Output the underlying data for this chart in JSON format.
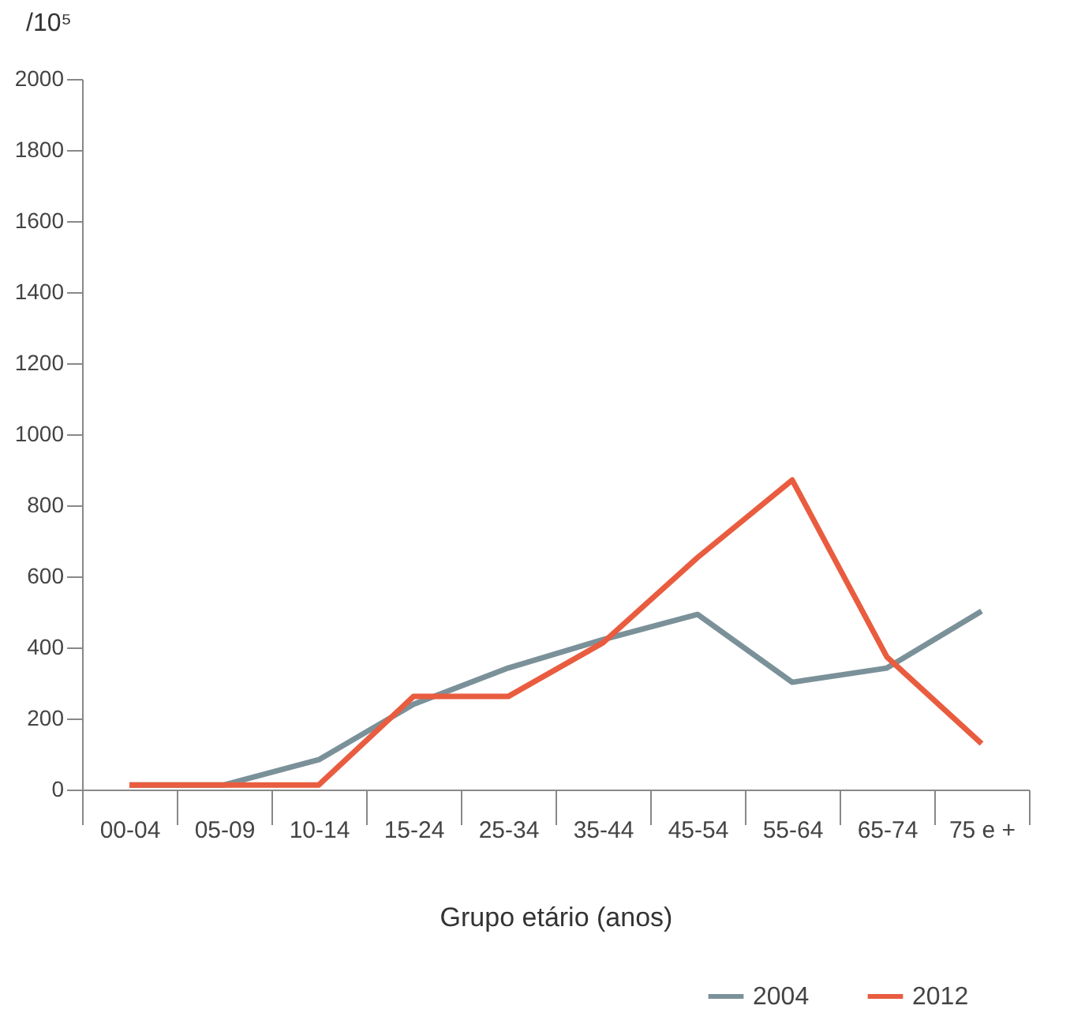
{
  "chart_data": {
    "type": "line",
    "xlabel": "Grupo etário (anos)",
    "ylabel": "/10⁵",
    "categories": [
      "00-04",
      "05-09",
      "10-14",
      "15-24",
      "25-34",
      "35-44",
      "45-54",
      "55-64",
      "65-74",
      "75 e +"
    ],
    "series": [
      {
        "name": "2004",
        "color": "#7b9199",
        "values": [
          13,
          13,
          84,
          240,
          342,
          422,
          493,
          302,
          342,
          502
        ]
      },
      {
        "name": "2012",
        "color": "#e95c3f",
        "values": [
          13,
          13,
          13,
          262,
          262,
          413,
          653,
          871,
          373,
          129
        ]
      }
    ],
    "ylim": [
      0,
      2000
    ],
    "yticks": [
      0,
      200,
      400,
      600,
      800,
      1000,
      1200,
      1400,
      1600,
      1800,
      2000
    ],
    "grid": false,
    "legend": "bottom right",
    "marker": "none",
    "line_style": "solid"
  }
}
